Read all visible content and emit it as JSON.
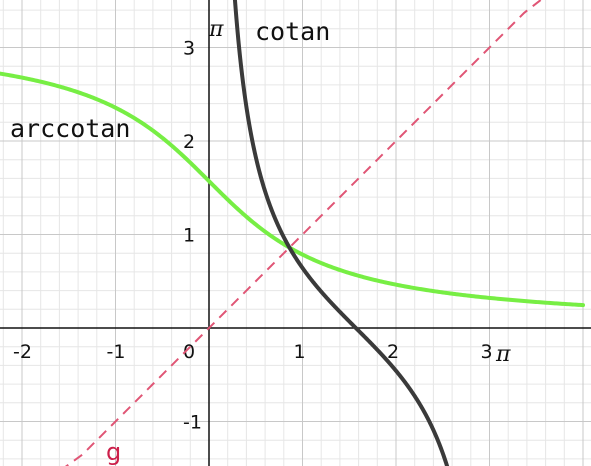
{
  "chart_data": {
    "type": "line",
    "title": "",
    "xlabel": "π",
    "ylabel": "π",
    "xlim": [
      -2.3,
      4.0
    ],
    "ylim": [
      -1.45,
      3.5
    ],
    "x_ticks": [
      {
        "value": -2,
        "label": "-2"
      },
      {
        "value": -1,
        "label": "-1"
      },
      {
        "value": 1,
        "label": "1"
      },
      {
        "value": 2,
        "label": "2"
      },
      {
        "value": 3,
        "label": "3"
      }
    ],
    "y_ticks": [
      {
        "value": -1,
        "label": "-1"
      },
      {
        "value": 1,
        "label": "1"
      },
      {
        "value": 2,
        "label": "2"
      },
      {
        "value": 3,
        "label": "3"
      }
    ],
    "origin_label": "0",
    "minor_grid_step": 0.2,
    "major_grid_step": 1,
    "grid": true,
    "series": [
      {
        "name": "arccotan",
        "function": "arccot(x) = π/2 − arctan(x)",
        "color": "#77ee44",
        "style": "solid"
      },
      {
        "name": "cotan",
        "function": "cot(x) = cos(x)/sin(x), 0 < x < π",
        "color": "#3a3a3a",
        "style": "solid"
      },
      {
        "name": "g",
        "function": "y = x",
        "color": "#e05575",
        "style": "dashed"
      }
    ],
    "labels": {
      "arccotan": "arccotan",
      "cotan": "cotan",
      "g": "g"
    },
    "colors": {
      "axis": "#111111",
      "grid_major": "#c8c8c8",
      "grid_minor": "#e6e6e6",
      "g_label": "#cc1f4a"
    }
  }
}
